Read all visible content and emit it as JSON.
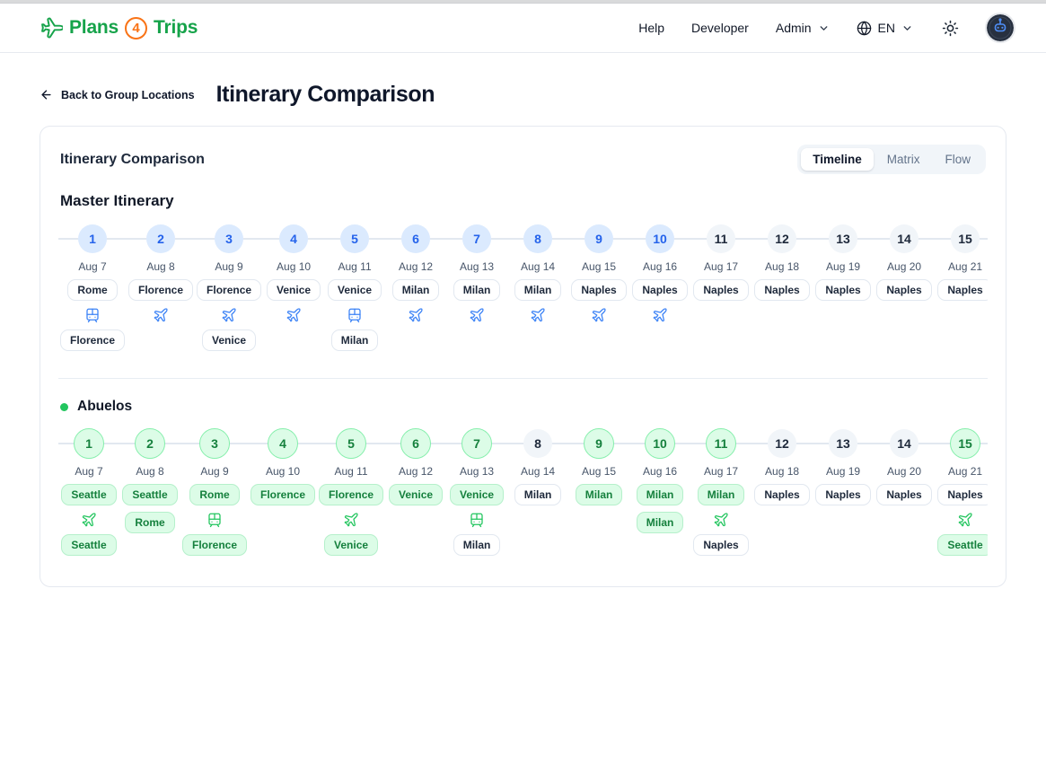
{
  "header": {
    "logo": {
      "plans": "Plans",
      "four": "4",
      "trips": "Trips"
    },
    "nav": [
      {
        "label": "Help"
      },
      {
        "label": "Developer"
      },
      {
        "label": "Admin"
      }
    ],
    "language": {
      "code": "EN"
    }
  },
  "page": {
    "back_label": "Back to Group Locations",
    "title": "Itinerary Comparison"
  },
  "card": {
    "title": "Itinerary Comparison",
    "tabs": [
      {
        "label": "Timeline",
        "active": true
      },
      {
        "label": "Matrix",
        "active": false
      },
      {
        "label": "Flow",
        "active": false
      }
    ]
  },
  "colors": {
    "brand_green": "#16a34a",
    "brand_orange": "#f97316",
    "master_accent": "#3b82f6",
    "variant_accent": "#22c55e",
    "muted_circle": "#f1f5f9"
  },
  "timelines": [
    {
      "name": "Master Itinerary",
      "theme": "blue",
      "dot": false,
      "days": [
        {
          "num": "1",
          "date": "Aug 7",
          "circle": "blue",
          "items": [
            {
              "type": "badge",
              "text": "Rome",
              "variant": "white"
            },
            {
              "type": "icon",
              "icon": "train"
            },
            {
              "type": "badge",
              "text": "Florence",
              "variant": "white"
            }
          ]
        },
        {
          "num": "2",
          "date": "Aug 8",
          "circle": "blue",
          "items": [
            {
              "type": "badge",
              "text": "Florence",
              "variant": "white"
            },
            {
              "type": "icon",
              "icon": "plane"
            }
          ]
        },
        {
          "num": "3",
          "date": "Aug 9",
          "circle": "blue",
          "items": [
            {
              "type": "badge",
              "text": "Florence",
              "variant": "white"
            },
            {
              "type": "icon",
              "icon": "plane"
            },
            {
              "type": "badge",
              "text": "Venice",
              "variant": "white"
            }
          ]
        },
        {
          "num": "4",
          "date": "Aug 10",
          "circle": "blue",
          "items": [
            {
              "type": "badge",
              "text": "Venice",
              "variant": "white"
            },
            {
              "type": "icon",
              "icon": "plane"
            }
          ]
        },
        {
          "num": "5",
          "date": "Aug 11",
          "circle": "blue",
          "items": [
            {
              "type": "badge",
              "text": "Venice",
              "variant": "white"
            },
            {
              "type": "icon",
              "icon": "train"
            },
            {
              "type": "badge",
              "text": "Milan",
              "variant": "white"
            }
          ]
        },
        {
          "num": "6",
          "date": "Aug 12",
          "circle": "blue",
          "items": [
            {
              "type": "badge",
              "text": "Milan",
              "variant": "white"
            },
            {
              "type": "icon",
              "icon": "plane"
            }
          ]
        },
        {
          "num": "7",
          "date": "Aug 13",
          "circle": "blue",
          "items": [
            {
              "type": "badge",
              "text": "Milan",
              "variant": "white"
            },
            {
              "type": "icon",
              "icon": "plane"
            }
          ]
        },
        {
          "num": "8",
          "date": "Aug 14",
          "circle": "blue",
          "items": [
            {
              "type": "badge",
              "text": "Milan",
              "variant": "white"
            },
            {
              "type": "icon",
              "icon": "plane"
            }
          ]
        },
        {
          "num": "9",
          "date": "Aug 15",
          "circle": "blue",
          "items": [
            {
              "type": "badge",
              "text": "Naples",
              "variant": "white"
            },
            {
              "type": "icon",
              "icon": "plane"
            }
          ]
        },
        {
          "num": "10",
          "date": "Aug 16",
          "circle": "blue",
          "items": [
            {
              "type": "badge",
              "text": "Naples",
              "variant": "white"
            },
            {
              "type": "icon",
              "icon": "plane"
            }
          ]
        },
        {
          "num": "11",
          "date": "Aug 17",
          "circle": "gray",
          "items": [
            {
              "type": "badge",
              "text": "Naples",
              "variant": "white"
            }
          ]
        },
        {
          "num": "12",
          "date": "Aug 18",
          "circle": "gray",
          "items": [
            {
              "type": "badge",
              "text": "Naples",
              "variant": "white"
            }
          ]
        },
        {
          "num": "13",
          "date": "Aug 19",
          "circle": "gray",
          "items": [
            {
              "type": "badge",
              "text": "Naples",
              "variant": "white"
            }
          ]
        },
        {
          "num": "14",
          "date": "Aug 20",
          "circle": "gray",
          "items": [
            {
              "type": "badge",
              "text": "Naples",
              "variant": "white"
            }
          ]
        },
        {
          "num": "15",
          "date": "Aug 21",
          "circle": "gray",
          "items": [
            {
              "type": "badge",
              "text": "Naples",
              "variant": "white"
            }
          ]
        }
      ]
    },
    {
      "name": "Abuelos",
      "theme": "green",
      "dot": true,
      "days": [
        {
          "num": "1",
          "date": "Aug 7",
          "circle": "green",
          "items": [
            {
              "type": "badge",
              "text": "Seattle",
              "variant": "green"
            },
            {
              "type": "icon",
              "icon": "plane"
            },
            {
              "type": "badge",
              "text": "Seattle",
              "variant": "green"
            }
          ]
        },
        {
          "num": "2",
          "date": "Aug 8",
          "circle": "green",
          "items": [
            {
              "type": "badge",
              "text": "Seattle",
              "variant": "green"
            },
            {
              "type": "badge",
              "text": "Rome",
              "variant": "green"
            }
          ]
        },
        {
          "num": "3",
          "date": "Aug 9",
          "circle": "green",
          "items": [
            {
              "type": "badge",
              "text": "Rome",
              "variant": "green"
            },
            {
              "type": "icon",
              "icon": "train"
            },
            {
              "type": "badge",
              "text": "Florence",
              "variant": "green"
            }
          ]
        },
        {
          "num": "4",
          "date": "Aug 10",
          "circle": "green",
          "items": [
            {
              "type": "badge",
              "text": "Florence",
              "variant": "green"
            }
          ]
        },
        {
          "num": "5",
          "date": "Aug 11",
          "circle": "green",
          "items": [
            {
              "type": "badge",
              "text": "Florence",
              "variant": "green"
            },
            {
              "type": "icon",
              "icon": "plane"
            },
            {
              "type": "badge",
              "text": "Venice",
              "variant": "green"
            }
          ]
        },
        {
          "num": "6",
          "date": "Aug 12",
          "circle": "green",
          "items": [
            {
              "type": "badge",
              "text": "Venice",
              "variant": "green"
            }
          ]
        },
        {
          "num": "7",
          "date": "Aug 13",
          "circle": "green",
          "items": [
            {
              "type": "badge",
              "text": "Venice",
              "variant": "green"
            },
            {
              "type": "icon",
              "icon": "train"
            },
            {
              "type": "badge",
              "text": "Milan",
              "variant": "white"
            }
          ]
        },
        {
          "num": "8",
          "date": "Aug 14",
          "circle": "gray",
          "items": [
            {
              "type": "badge",
              "text": "Milan",
              "variant": "white"
            }
          ]
        },
        {
          "num": "9",
          "date": "Aug 15",
          "circle": "green",
          "items": [
            {
              "type": "badge",
              "text": "Milan",
              "variant": "green"
            }
          ]
        },
        {
          "num": "10",
          "date": "Aug 16",
          "circle": "green",
          "items": [
            {
              "type": "badge",
              "text": "Milan",
              "variant": "green"
            },
            {
              "type": "badge",
              "text": "Milan",
              "variant": "green"
            }
          ]
        },
        {
          "num": "11",
          "date": "Aug 17",
          "circle": "green",
          "items": [
            {
              "type": "badge",
              "text": "Milan",
              "variant": "green"
            },
            {
              "type": "icon",
              "icon": "plane"
            },
            {
              "type": "badge",
              "text": "Naples",
              "variant": "white"
            }
          ]
        },
        {
          "num": "12",
          "date": "Aug 18",
          "circle": "gray",
          "items": [
            {
              "type": "badge",
              "text": "Naples",
              "variant": "white"
            }
          ]
        },
        {
          "num": "13",
          "date": "Aug 19",
          "circle": "gray",
          "items": [
            {
              "type": "badge",
              "text": "Naples",
              "variant": "white"
            }
          ]
        },
        {
          "num": "14",
          "date": "Aug 20",
          "circle": "gray",
          "items": [
            {
              "type": "badge",
              "text": "Naples",
              "variant": "white"
            }
          ]
        },
        {
          "num": "15",
          "date": "Aug 21",
          "circle": "green",
          "items": [
            {
              "type": "badge",
              "text": "Naples",
              "variant": "white"
            },
            {
              "type": "icon",
              "icon": "plane"
            },
            {
              "type": "badge",
              "text": "Seattle",
              "variant": "green"
            }
          ]
        }
      ]
    }
  ]
}
